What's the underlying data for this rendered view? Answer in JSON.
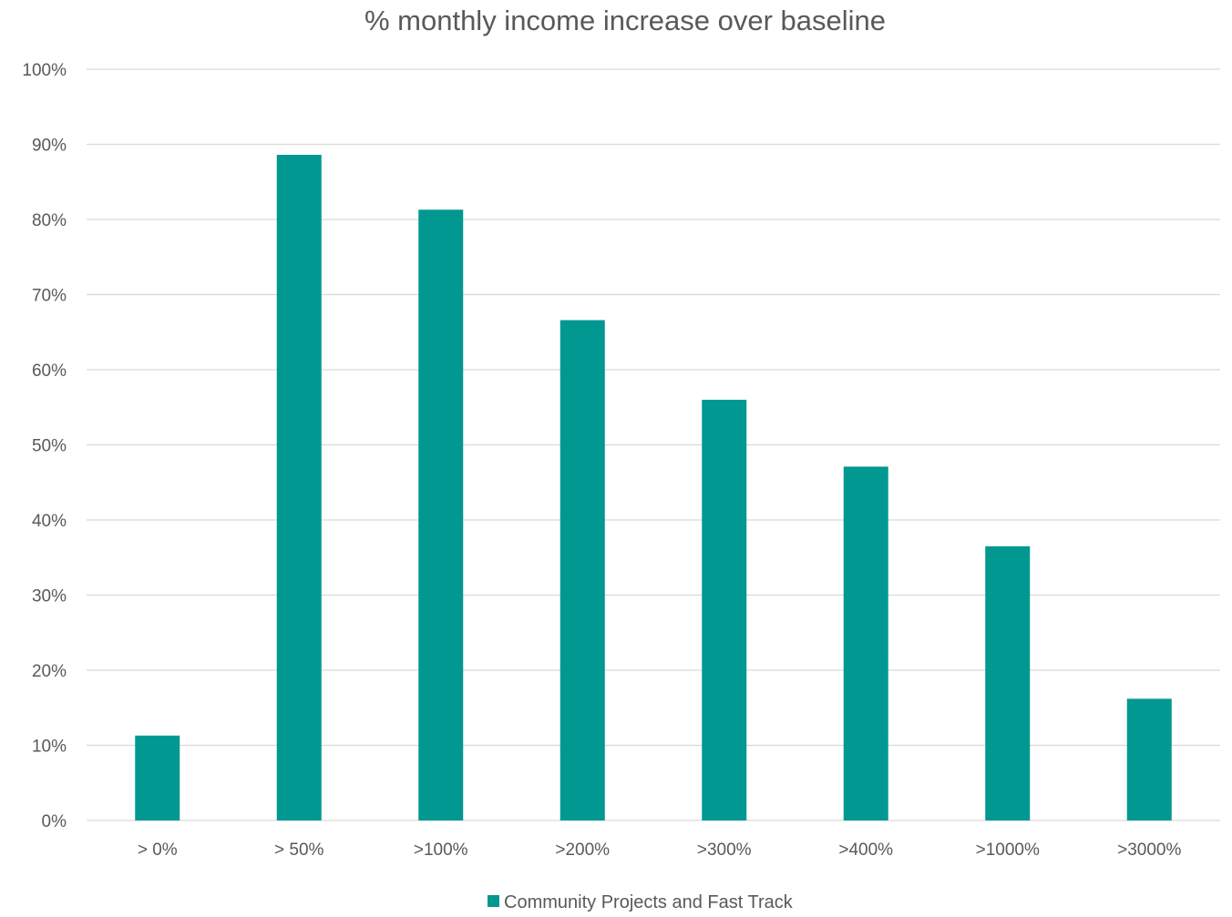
{
  "chart_data": {
    "type": "bar",
    "title": "% monthly income increase over baseline",
    "categories": [
      "> 0%",
      "> 50%",
      ">100%",
      ">200%",
      ">300%",
      ">400%",
      ">1000%",
      ">3000%"
    ],
    "series": [
      {
        "name": "Community Projects and Fast Track",
        "values": [
          11.3,
          88.6,
          81.3,
          66.6,
          56.0,
          47.1,
          36.5,
          16.2
        ],
        "color": "#009891"
      }
    ],
    "ylim": [
      0,
      100
    ],
    "yticks": [
      "0%",
      "10%",
      "20%",
      "30%",
      "40%",
      "50%",
      "60%",
      "70%",
      "80%",
      "90%",
      "100%"
    ],
    "ytick_values": [
      0,
      10,
      20,
      30,
      40,
      50,
      60,
      70,
      80,
      90,
      100
    ],
    "grid": true,
    "legend_position": "bottom-center",
    "colors": {
      "grid": "#d9d9d9",
      "text": "#595959",
      "bar": "#009891"
    }
  }
}
